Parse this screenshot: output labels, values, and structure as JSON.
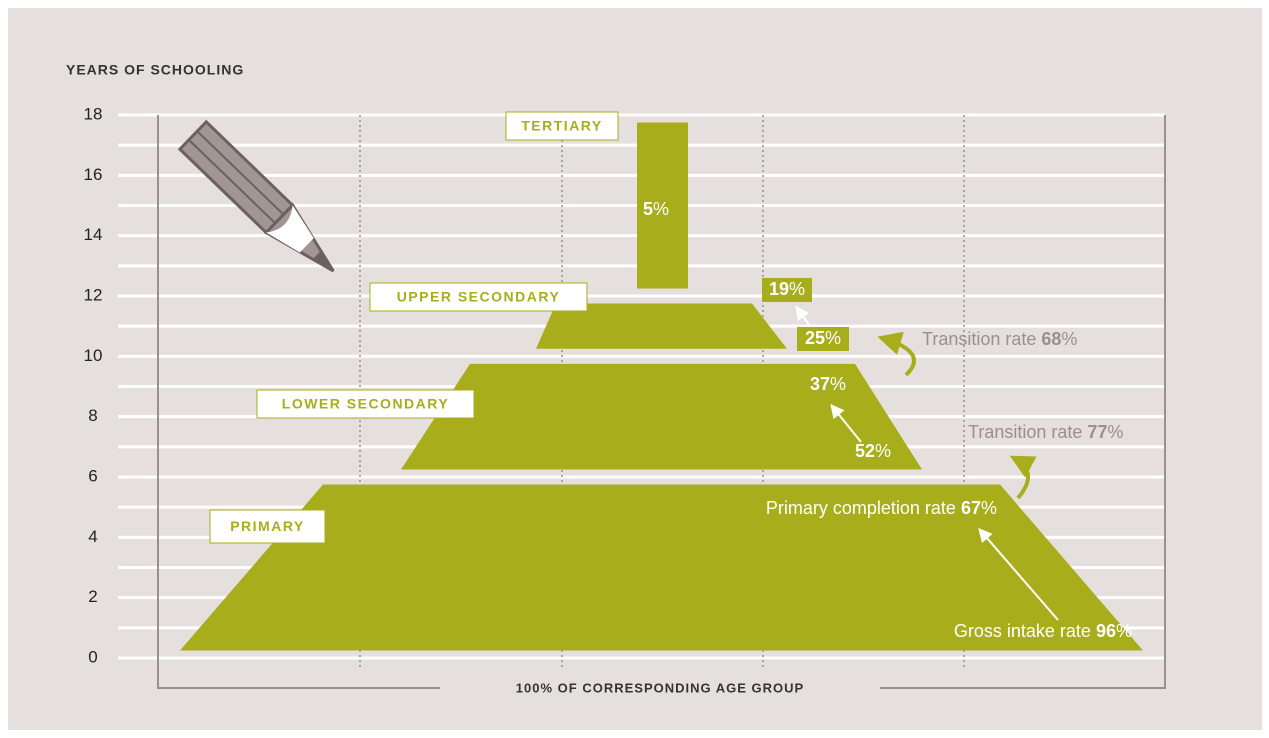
{
  "chart_data": {
    "type": "pyramid",
    "y_title": "YEARS OF SCHOOLING",
    "x_title": "100% OF CORRESPONDING AGE GROUP",
    "ylim": [
      0,
      18
    ],
    "yticks": [
      0,
      2,
      4,
      6,
      8,
      10,
      12,
      14,
      16,
      18
    ],
    "minor_yticks": [
      1,
      3,
      5,
      7,
      9,
      11,
      13,
      15,
      17
    ],
    "color": "#a8ad1c",
    "levels": [
      {
        "name": "PRIMARY",
        "years": [
          0,
          6
        ]
      },
      {
        "name": "LOWER SECONDARY",
        "years": [
          6,
          10
        ]
      },
      {
        "name": "UPPER SECONDARY",
        "years": [
          10,
          12
        ]
      },
      {
        "name": "TERTIARY",
        "years": [
          12,
          18
        ]
      }
    ],
    "rates": [
      {
        "value": 5,
        "unit": "%"
      },
      {
        "value": 19,
        "unit": "%"
      },
      {
        "value": 25,
        "unit": "%"
      },
      {
        "label": "Transition rate",
        "value": 68,
        "unit": "%"
      },
      {
        "value": 37,
        "unit": "%"
      },
      {
        "value": 52,
        "unit": "%"
      },
      {
        "label": "Transition rate",
        "value": 77,
        "unit": "%"
      },
      {
        "label": "Primary completion rate",
        "value": 67,
        "unit": "%"
      },
      {
        "label": "Gross intake rate",
        "value": 96,
        "unit": "%"
      }
    ]
  }
}
